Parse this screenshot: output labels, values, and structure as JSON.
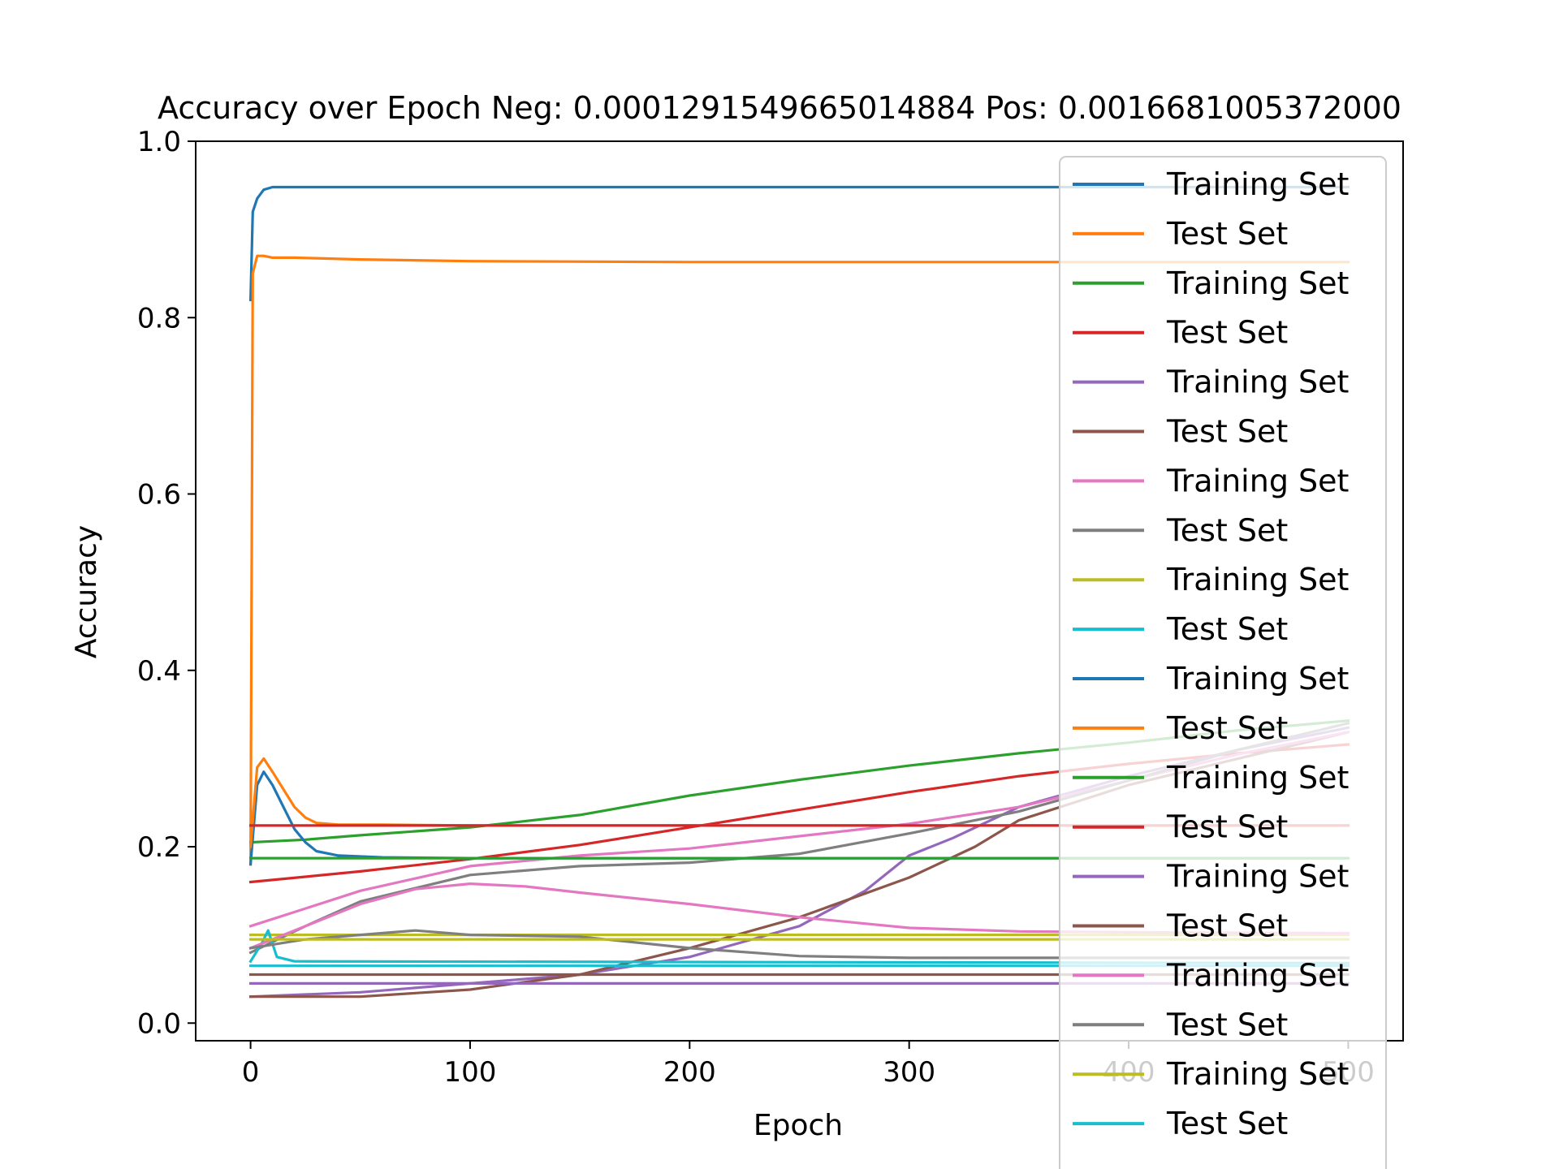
{
  "chart_data": {
    "type": "line",
    "title": "Accuracy over Epoch Neg: 0.000129154966501488​4 Pos: 0.0016681005372000",
    "xlabel": "Epoch",
    "ylabel": "Accuracy",
    "xlim": [
      -25,
      525
    ],
    "ylim": [
      -0.02,
      1.0
    ],
    "xticks": [
      0,
      100,
      200,
      300,
      400,
      500
    ],
    "yticks": [
      0.0,
      0.2,
      0.4,
      0.6,
      0.8,
      1.0
    ],
    "xtick_labels": [
      "0",
      "100",
      "200",
      "300",
      "400",
      "500"
    ],
    "ytick_labels": [
      "0.0",
      "0.2",
      "0.4",
      "0.6",
      "0.8",
      "1.0"
    ],
    "grid": false,
    "legend_position": "top-right",
    "series": [
      {
        "name": "Training Set",
        "color": "#1f77b4",
        "x": [
          0,
          1,
          3,
          6,
          10,
          20,
          50,
          100,
          200,
          300,
          400,
          500
        ],
        "y": [
          0.82,
          0.92,
          0.935,
          0.945,
          0.948,
          0.948,
          0.948,
          0.948,
          0.948,
          0.948,
          0.948,
          0.948
        ]
      },
      {
        "name": "Test Set",
        "color": "#ff7f0e",
        "x": [
          0,
          1,
          3,
          6,
          10,
          20,
          50,
          100,
          200,
          300,
          400,
          500
        ],
        "y": [
          0.18,
          0.85,
          0.87,
          0.87,
          0.868,
          0.868,
          0.866,
          0.864,
          0.863,
          0.863,
          0.863,
          0.863
        ]
      },
      {
        "name": "Training Set",
        "color": "#2ca02c",
        "x": [
          0,
          25,
          50,
          100,
          150,
          200,
          250,
          300,
          350,
          400,
          450,
          500
        ],
        "y": [
          0.205,
          0.208,
          0.213,
          0.222,
          0.236,
          0.258,
          0.276,
          0.292,
          0.306,
          0.318,
          0.332,
          0.343
        ]
      },
      {
        "name": "Test Set",
        "color": "#d62728",
        "x": [
          0,
          25,
          50,
          100,
          150,
          200,
          250,
          300,
          350,
          400,
          450,
          500
        ],
        "y": [
          0.16,
          0.166,
          0.172,
          0.186,
          0.202,
          0.222,
          0.242,
          0.262,
          0.28,
          0.294,
          0.306,
          0.316
        ]
      },
      {
        "name": "Training Set",
        "color": "#9467bd",
        "x": [
          0,
          50,
          100,
          150,
          200,
          250,
          280,
          300,
          320,
          350,
          400,
          450,
          500
        ],
        "y": [
          0.03,
          0.035,
          0.045,
          0.055,
          0.075,
          0.11,
          0.15,
          0.19,
          0.21,
          0.245,
          0.28,
          0.31,
          0.335
        ]
      },
      {
        "name": "Test Set",
        "color": "#8c564b",
        "x": [
          0,
          50,
          100,
          150,
          200,
          250,
          300,
          330,
          350,
          400,
          450,
          500
        ],
        "y": [
          0.03,
          0.03,
          0.038,
          0.055,
          0.085,
          0.12,
          0.165,
          0.2,
          0.23,
          0.27,
          0.3,
          0.33
        ]
      },
      {
        "name": "Training Set",
        "color": "#e377c2",
        "x": [
          0,
          25,
          50,
          100,
          150,
          200,
          250,
          300,
          350,
          400,
          450,
          500
        ],
        "y": [
          0.11,
          0.13,
          0.15,
          0.178,
          0.19,
          0.198,
          0.212,
          0.226,
          0.245,
          0.275,
          0.305,
          0.33
        ]
      },
      {
        "name": "Test Set",
        "color": "#7f7f7f",
        "x": [
          0,
          25,
          50,
          100,
          150,
          200,
          250,
          300,
          350,
          400,
          450,
          500
        ],
        "y": [
          0.08,
          0.11,
          0.138,
          0.168,
          0.178,
          0.182,
          0.192,
          0.215,
          0.24,
          0.275,
          0.31,
          0.34
        ]
      },
      {
        "name": "Training Set",
        "color": "#bcbd22",
        "x": [
          0,
          500
        ],
        "y": [
          0.1,
          0.1
        ]
      },
      {
        "name": "Test Set",
        "color": "#17becf",
        "x": [
          0,
          5,
          8,
          12,
          20,
          500
        ],
        "y": [
          0.07,
          0.09,
          0.105,
          0.075,
          0.07,
          0.068
        ]
      },
      {
        "name": "Training Set",
        "color": "#1f77b4",
        "x": [
          0,
          3,
          6,
          10,
          15,
          20,
          25,
          30,
          40,
          60,
          100,
          500
        ],
        "y": [
          0.18,
          0.27,
          0.285,
          0.27,
          0.245,
          0.22,
          0.205,
          0.195,
          0.19,
          0.188,
          0.187,
          0.187
        ]
      },
      {
        "name": "Test Set",
        "color": "#ff7f0e",
        "x": [
          0,
          3,
          6,
          10,
          15,
          20,
          25,
          30,
          40,
          60,
          100,
          500
        ],
        "y": [
          0.2,
          0.29,
          0.3,
          0.285,
          0.265,
          0.245,
          0.233,
          0.227,
          0.225,
          0.225,
          0.224,
          0.224
        ]
      },
      {
        "name": "Training Set",
        "color": "#2ca02c",
        "x": [
          0,
          500
        ],
        "y": [
          0.187,
          0.187
        ]
      },
      {
        "name": "Test Set",
        "color": "#d62728",
        "x": [
          0,
          500
        ],
        "y": [
          0.224,
          0.224
        ]
      },
      {
        "name": "Training Set",
        "color": "#9467bd",
        "x": [
          0,
          500
        ],
        "y": [
          0.045,
          0.045
        ]
      },
      {
        "name": "Test Set",
        "color": "#8c564b",
        "x": [
          0,
          500
        ],
        "y": [
          0.055,
          0.055
        ]
      },
      {
        "name": "Training Set",
        "color": "#e377c2",
        "x": [
          0,
          25,
          50,
          75,
          100,
          125,
          150,
          200,
          250,
          300,
          350,
          400,
          500
        ],
        "y": [
          0.085,
          0.11,
          0.135,
          0.152,
          0.158,
          0.155,
          0.148,
          0.135,
          0.12,
          0.108,
          0.104,
          0.103,
          0.102
        ]
      },
      {
        "name": "Test Set",
        "color": "#7f7f7f",
        "x": [
          0,
          25,
          50,
          75,
          100,
          150,
          200,
          250,
          300,
          400,
          500
        ],
        "y": [
          0.085,
          0.095,
          0.1,
          0.105,
          0.1,
          0.098,
          0.085,
          0.076,
          0.074,
          0.074,
          0.074
        ]
      },
      {
        "name": "Training Set",
        "color": "#bcbd22",
        "x": [
          0,
          500
        ],
        "y": [
          0.095,
          0.095
        ]
      },
      {
        "name": "Test Set",
        "color": "#17becf",
        "x": [
          0,
          500
        ],
        "y": [
          0.065,
          0.065
        ]
      }
    ]
  }
}
